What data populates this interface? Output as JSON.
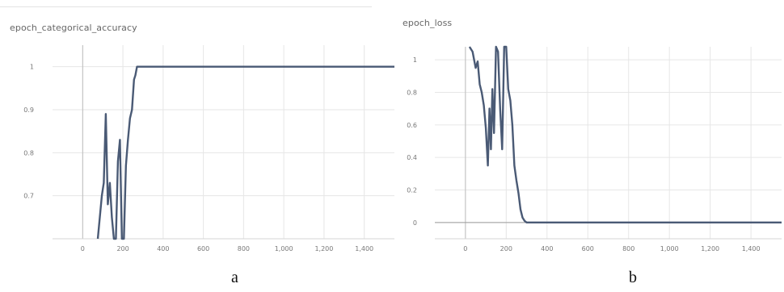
{
  "chart_data": [
    {
      "type": "line",
      "title": "epoch_categorical_accuracy",
      "caption": "a",
      "xlim": [
        -150,
        1550
      ],
      "ylim": [
        0.6,
        1.05
      ],
      "x_ticks": [
        0,
        200,
        400,
        600,
        800,
        1000,
        1200,
        1400
      ],
      "x_tick_labels": [
        "0",
        "200",
        "400",
        "600",
        "800",
        "1,000",
        "1,200",
        "1,400"
      ],
      "y_ticks": [
        0.7,
        0.8,
        0.9,
        1
      ],
      "y_tick_labels": [
        "0.7",
        "0.8",
        "0.9",
        "1"
      ],
      "grid": true,
      "line_color": "#4a5a75",
      "series": [
        {
          "x": [
            75,
            85,
            95,
            105,
            115,
            125,
            135,
            145,
            155,
            165,
            175,
            185,
            195,
            205,
            215,
            225,
            235,
            245,
            255,
            262,
            270,
            280,
            300,
            400,
            600,
            800,
            1000,
            1200,
            1400,
            1550
          ],
          "y": [
            0.6,
            0.65,
            0.7,
            0.73,
            0.89,
            0.68,
            0.73,
            0.65,
            0.6,
            0.6,
            0.78,
            0.83,
            0.6,
            0.6,
            0.77,
            0.83,
            0.88,
            0.9,
            0.97,
            0.98,
            1,
            1,
            1,
            1,
            1,
            1,
            1,
            1,
            1,
            1
          ]
        }
      ]
    },
    {
      "type": "line",
      "title": "epoch_loss",
      "caption": "b",
      "xlim": [
        -150,
        1550
      ],
      "ylim": [
        -0.1,
        1.08
      ],
      "x_ticks": [
        0,
        200,
        400,
        600,
        800,
        1000,
        1200,
        1400
      ],
      "x_tick_labels": [
        "0",
        "200",
        "400",
        "600",
        "800",
        "1,000",
        "1,200",
        "1,400"
      ],
      "y_ticks": [
        0,
        0.2,
        0.4,
        0.6,
        0.8,
        1
      ],
      "y_tick_labels": [
        "0",
        "0.2",
        "0.4",
        "0.6",
        "0.8",
        "1"
      ],
      "grid": true,
      "line_color": "#4a5a75",
      "series": [
        {
          "x": [
            20,
            35,
            50,
            60,
            70,
            80,
            90,
            100,
            110,
            118,
            125,
            132,
            140,
            150,
            160,
            170,
            180,
            190,
            200,
            210,
            220,
            230,
            240,
            250,
            260,
            270,
            280,
            290,
            300,
            320,
            350,
            400,
            600,
            800,
            1000,
            1200,
            1400,
            1550
          ],
          "y": [
            1.08,
            1.05,
            0.95,
            0.99,
            0.85,
            0.8,
            0.72,
            0.58,
            0.35,
            0.7,
            0.45,
            0.82,
            0.55,
            1.08,
            1.05,
            0.7,
            0.45,
            1.08,
            1.08,
            0.82,
            0.75,
            0.6,
            0.35,
            0.26,
            0.18,
            0.08,
            0.03,
            0.01,
            0,
            0,
            0,
            0,
            0,
            0,
            0,
            0,
            0,
            0
          ]
        }
      ]
    }
  ]
}
